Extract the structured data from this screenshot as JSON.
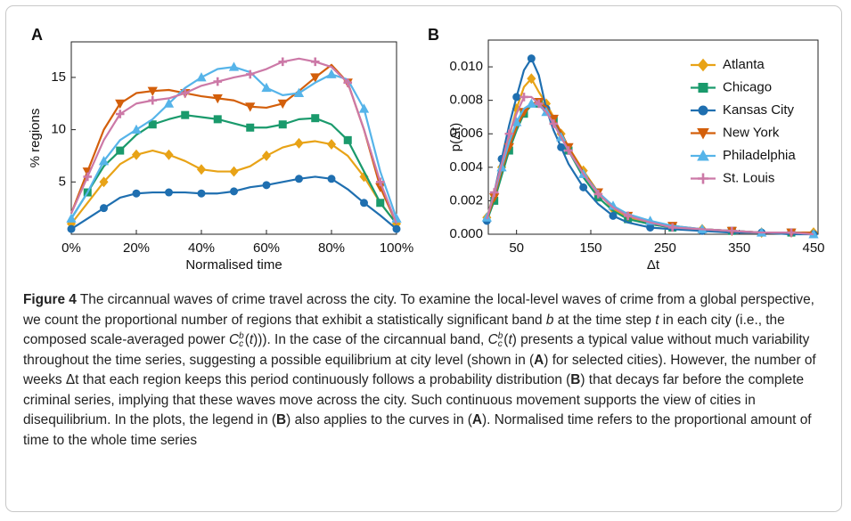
{
  "chart_data": [
    {
      "type": "line",
      "panel": "A",
      "ylabel": "% regions",
      "xlabel": "Normalised time",
      "x": [
        0,
        5,
        10,
        15,
        20,
        25,
        30,
        35,
        40,
        45,
        50,
        55,
        60,
        65,
        70,
        75,
        80,
        85,
        90,
        95,
        100
      ],
      "xlim": [
        0,
        100
      ],
      "xticks": [
        {
          "value": 0,
          "label": "0%"
        },
        {
          "value": 20,
          "label": "20%"
        },
        {
          "value": 40,
          "label": "40%"
        },
        {
          "value": 60,
          "label": "60%"
        },
        {
          "value": 80,
          "label": "80%"
        },
        {
          "value": 100,
          "label": "100%"
        }
      ],
      "ylim": [
        0,
        18.4
      ],
      "yticks": [
        5,
        10,
        15
      ],
      "series": [
        {
          "color": "#e8a317",
          "marker": "diamond",
          "values": [
            1,
            3,
            5,
            6.7,
            7.6,
            8,
            7.6,
            7,
            6.2,
            6,
            6,
            6.5,
            7.5,
            8.3,
            8.7,
            8.9,
            8.6,
            7.5,
            5.5,
            3,
            1
          ]
        },
        {
          "color": "#1a9a6c",
          "marker": "square",
          "values": [
            1.5,
            4,
            6.5,
            8,
            9.5,
            10.5,
            11,
            11.4,
            11.2,
            11,
            10.6,
            10.2,
            10.2,
            10.5,
            11,
            11.1,
            10.5,
            9,
            6,
            3,
            1
          ]
        },
        {
          "color": "#1f6fb0",
          "marker": "circle",
          "values": [
            0.5,
            1.5,
            2.5,
            3.5,
            3.9,
            4,
            4,
            4,
            3.9,
            3.9,
            4.1,
            4.5,
            4.7,
            5,
            5.3,
            5.5,
            5.3,
            4.3,
            3,
            1.8,
            0.5
          ]
        },
        {
          "color": "#d35f0b",
          "marker": "triangle-down",
          "values": [
            2,
            6,
            10,
            12.5,
            13.5,
            13.7,
            13.8,
            13.5,
            13.2,
            13,
            12.8,
            12.2,
            12.1,
            12.5,
            13.7,
            15,
            16.2,
            14.5,
            10,
            4.5,
            1
          ]
        },
        {
          "color": "#56b4e9",
          "marker": "triangle-up",
          "values": [
            1.5,
            4,
            7,
            9,
            10,
            11,
            12.5,
            14,
            15,
            15.8,
            16,
            15.5,
            14,
            13.3,
            13.5,
            14.5,
            15.3,
            14.8,
            12,
            6,
            1.5
          ]
        },
        {
          "color": "#cc79a7",
          "marker": "plus",
          "values": [
            2,
            5.5,
            9,
            11.5,
            12.5,
            12.8,
            13,
            13.5,
            14.2,
            14.6,
            15,
            15.3,
            15.8,
            16.5,
            16.8,
            16.5,
            16,
            14.5,
            10,
            5,
            1
          ]
        }
      ]
    },
    {
      "type": "line",
      "panel": "B",
      "ylabel": "p(Δt)",
      "xlabel": "Δt",
      "x": [
        10,
        20,
        30,
        40,
        50,
        60,
        70,
        80,
        90,
        100,
        110,
        120,
        140,
        160,
        180,
        200,
        230,
        260,
        300,
        340,
        380,
        420,
        450
      ],
      "xlim": [
        12,
        456
      ],
      "xticks": [
        50,
        150,
        250,
        350,
        450
      ],
      "ylim": [
        0,
        0.0116
      ],
      "yticks": [
        {
          "value": 0,
          "label": "0.000"
        },
        {
          "value": 0.002,
          "label": "0.002"
        },
        {
          "value": 0.004,
          "label": "0.004"
        },
        {
          "value": 0.006,
          "label": "0.006"
        },
        {
          "value": 0.008,
          "label": "0.008"
        },
        {
          "value": 0.01,
          "label": "0.010"
        }
      ],
      "legend": "upper right",
      "series": [
        {
          "name": "Atlanta",
          "color": "#e8a317",
          "marker": "diamond",
          "values": [
            0.001,
            0.0025,
            0.004,
            0.0058,
            0.0075,
            0.0088,
            0.0093,
            0.0085,
            0.0078,
            0.007,
            0.006,
            0.0052,
            0.0038,
            0.0025,
            0.0015,
            0.001,
            0.0006,
            0.0004,
            0.0003,
            0.0002,
            0.0001,
            0.0001,
            0.0001
          ]
        },
        {
          "name": "Chicago",
          "color": "#1a9a6c",
          "marker": "square",
          "values": [
            0.0008,
            0.002,
            0.0035,
            0.005,
            0.0062,
            0.0072,
            0.0077,
            0.0078,
            0.0075,
            0.0068,
            0.006,
            0.005,
            0.0034,
            0.0022,
            0.0014,
            0.0009,
            0.0006,
            0.0004,
            0.0003,
            0.0002,
            0.0001,
            0.0001,
            0
          ]
        },
        {
          "name": "Kansas City",
          "color": "#1f6fb0",
          "marker": "circle",
          "values": [
            0.0008,
            0.0025,
            0.0045,
            0.0065,
            0.0082,
            0.0098,
            0.0105,
            0.0095,
            0.0075,
            0.0062,
            0.0052,
            0.0042,
            0.0028,
            0.0018,
            0.0011,
            0.0007,
            0.0004,
            0.0003,
            0.0002,
            0.0001,
            0.0001,
            0,
            0
          ]
        },
        {
          "name": "New York",
          "color": "#d35f0b",
          "marker": "triangle-down",
          "values": [
            0.0009,
            0.0022,
            0.0038,
            0.0052,
            0.0064,
            0.0073,
            0.0078,
            0.0079,
            0.0076,
            0.0069,
            0.0061,
            0.0052,
            0.0037,
            0.0025,
            0.0016,
            0.0011,
            0.0007,
            0.0005,
            0.0003,
            0.0002,
            0.0001,
            0.0001,
            0.0001
          ]
        },
        {
          "name": "Philadelphia",
          "color": "#56b4e9",
          "marker": "triangle-up",
          "values": [
            0.001,
            0.0024,
            0.004,
            0.0055,
            0.0067,
            0.0075,
            0.0078,
            0.0077,
            0.0073,
            0.0066,
            0.0058,
            0.005,
            0.0036,
            0.0025,
            0.0017,
            0.0012,
            0.0008,
            0.0005,
            0.0003,
            0.0002,
            0.0001,
            0.0001,
            0
          ]
        },
        {
          "name": "St. Louis",
          "color": "#cc79a7",
          "marker": "plus",
          "values": [
            0.0009,
            0.0025,
            0.0042,
            0.006,
            0.0072,
            0.0082,
            0.0082,
            0.0078,
            0.0073,
            0.0066,
            0.0058,
            0.005,
            0.0036,
            0.0024,
            0.0016,
            0.0011,
            0.0007,
            0.0004,
            0.0003,
            0.0002,
            0.0001,
            0.0001,
            0
          ]
        }
      ]
    }
  ],
  "caption": {
    "label": "Figure 4",
    "parts": [
      " The circannual waves of crime travel across the city. To examine the local-level waves of crime from a global perspective, we count the proportional number of regions that exhibit a statistically significant band ",
      "b",
      " at the time step ",
      "t",
      " in each city (i.e., the composed scale-averaged power ",
      "C",
      "b",
      "c",
      "(",
      "t",
      "))). In the case of the circannual band, ",
      "C",
      "b",
      "c",
      "(",
      "t",
      ") presents a typical value without much variability throughout the time series, suggesting a possible equilibrium at city level (shown in (",
      "A",
      ") for selected cities). However, the number of weeks ",
      "Δt",
      " that each region keeps this period continuously follows a probability distribution (",
      "B",
      ") that decays far before the complete criminal series, implying that these waves move across the city. Such continuous movement supports the view of cities in disequilibrium. In the plots, the legend in (",
      "B",
      ") also applies to the curves in (",
      "A",
      "). Normalised time refers to the proportional amount of time to the whole time series"
    ]
  }
}
